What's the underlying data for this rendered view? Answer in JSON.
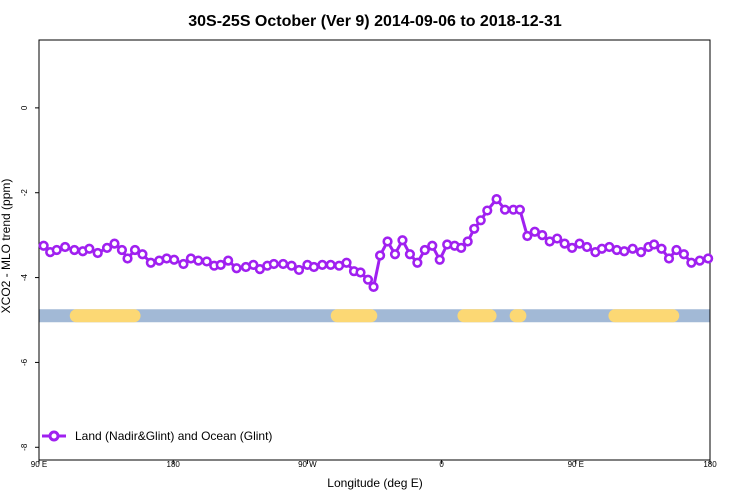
{
  "chart_data": {
    "type": "line",
    "title": "30S-25S October (Ver 9)   2014-09-06 to 2018-12-31",
    "xlabel": "Longitude (deg E)",
    "ylabel": "XCO2 - MLO trend (ppm)",
    "xlim": [
      90,
      450
    ],
    "ylim": [
      -8.3,
      1.6
    ],
    "xticks": [
      {
        "value": 90,
        "label": "90 E"
      },
      {
        "value": 162,
        "label": "180"
      },
      {
        "value": 234,
        "label": "90 W"
      },
      {
        "value": 306,
        "label": "0"
      },
      {
        "value": 378,
        "label": "90 E"
      },
      {
        "value": 450,
        "label": "180"
      }
    ],
    "yticks": [
      0,
      -2,
      -4,
      -6,
      -8
    ],
    "legend": {
      "position": "bottom-left",
      "label": "Land (Nadir&Glint) and Ocean (Glint)"
    },
    "band": {
      "y": -4.9,
      "ocean_color": "#a2b9d6",
      "land_color": "#fcd874",
      "land_segments": [
        [
          110,
          141
        ],
        [
          250,
          268
        ],
        [
          318,
          332
        ],
        [
          346,
          348
        ],
        [
          399,
          430
        ]
      ]
    },
    "series": [
      {
        "name": "Land (Nadir&Glint) and Ocean (Glint)",
        "color": "#a020f0",
        "x": [
          92.5,
          96.0,
          99.5,
          104.0,
          109.0,
          113.5,
          117.0,
          121.5,
          126.5,
          130.5,
          134.5,
          137.5,
          141.5,
          145.5,
          150.0,
          154.5,
          158.5,
          162.5,
          167.5,
          171.5,
          175.5,
          180.0,
          184.0,
          187.5,
          191.5,
          196.0,
          201.0,
          205.0,
          208.5,
          212.5,
          216.0,
          221.0,
          225.5,
          229.5,
          234.0,
          237.5,
          242.0,
          246.5,
          251.0,
          255.0,
          259.0,
          262.5,
          266.5,
          269.5,
          273.0,
          277.0,
          281.0,
          285.0,
          289.0,
          293.0,
          297.0,
          301.0,
          305.0,
          309.0,
          313.0,
          316.5,
          320.0,
          323.5,
          327.0,
          330.5,
          335.5,
          340.0,
          344.5,
          348.0,
          352.0,
          356.0,
          360.0,
          364.0,
          368.0,
          372.0,
          376.0,
          380.0,
          384.0,
          388.5,
          392.0,
          396.0,
          400.0,
          404.0,
          408.5,
          413.0,
          417.0,
          420.0,
          424.0,
          428.0,
          432.0,
          436.0,
          440.0,
          444.5,
          449.0
        ],
        "values": [
          -3.25,
          -3.4,
          -3.35,
          -3.28,
          -3.35,
          -3.38,
          -3.32,
          -3.42,
          -3.3,
          -3.2,
          -3.35,
          -3.55,
          -3.35,
          -3.45,
          -3.65,
          -3.6,
          -3.55,
          -3.58,
          -3.68,
          -3.55,
          -3.6,
          -3.62,
          -3.72,
          -3.7,
          -3.6,
          -3.78,
          -3.75,
          -3.7,
          -3.8,
          -3.72,
          -3.68,
          -3.68,
          -3.72,
          -3.82,
          -3.7,
          -3.75,
          -3.7,
          -3.7,
          -3.72,
          -3.65,
          -3.85,
          -3.88,
          -4.05,
          -4.22,
          -3.48,
          -3.15,
          -3.45,
          -3.12,
          -3.45,
          -3.65,
          -3.35,
          -3.25,
          -3.58,
          -3.22,
          -3.25,
          -3.3,
          -3.15,
          -2.85,
          -2.65,
          -2.42,
          -2.15,
          -2.4,
          -2.4,
          -2.4,
          -3.02,
          -2.92,
          -3.0,
          -3.15,
          -3.08,
          -3.2,
          -3.3,
          -3.2,
          -3.28,
          -3.4,
          -3.32,
          -3.28,
          -3.35,
          -3.38,
          -3.32,
          -3.4,
          -3.28,
          -3.22,
          -3.32,
          -3.55,
          -3.35,
          -3.45,
          -3.65,
          -3.6,
          -3.55
        ]
      }
    ]
  }
}
